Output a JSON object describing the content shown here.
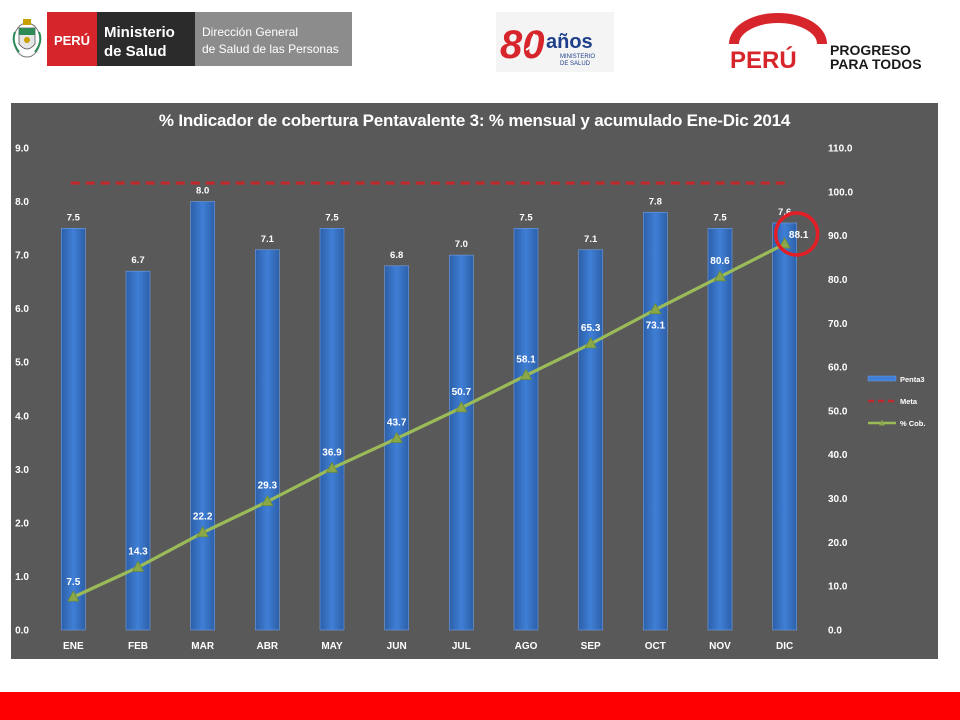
{
  "header": {
    "minsa_country": "PERÚ",
    "minsa_line1": "Ministerio",
    "minsa_line2": "de Salud",
    "dg_line1": "Dirección General",
    "dg_line2": "de Salud de las Personas",
    "anniv_number": "80",
    "anniv_word": "años",
    "anniv_sub1": "MINISTERIO",
    "anniv_sub2": "DE SALUD",
    "peru_brand": "PERÚ",
    "peru_slogan1": "PROGRESO",
    "peru_slogan2": "PARA TODOS"
  },
  "colors": {
    "chart_bg": "#595959",
    "bar": "#3f7fd6",
    "meta": "#c0282c",
    "cob_line": "#9bbb59",
    "footer": "#ff0000",
    "brand_red": "#d7262b"
  },
  "chart_data": {
    "type": "bar",
    "title": "% Indicador de cobertura Pentavalente 3: % mensual y acumulado Ene-Dic  2014",
    "categories": [
      "ENE",
      "FEB",
      "MAR",
      "ABR",
      "MAY",
      "JUN",
      "JUL",
      "AGO",
      "SEP",
      "OCT",
      "NOV",
      "DIC"
    ],
    "series": [
      {
        "name": "Penta3",
        "type": "bar",
        "axis": "left",
        "values": [
          7.5,
          6.7,
          8.0,
          7.1,
          7.5,
          6.8,
          7.0,
          7.5,
          7.1,
          7.8,
          7.5,
          7.6
        ]
      },
      {
        "name": "Meta",
        "type": "line",
        "style": "dashed",
        "axis": "right",
        "values": [
          102,
          102,
          102,
          102,
          102,
          102,
          102,
          102,
          102,
          102,
          102,
          102
        ]
      },
      {
        "name": "% Cob.",
        "type": "line",
        "marker": "triangle",
        "axis": "right",
        "values": [
          7.5,
          14.3,
          22.2,
          29.3,
          36.9,
          43.7,
          50.7,
          58.1,
          65.3,
          73.1,
          80.6,
          88.1
        ]
      }
    ],
    "ylim_left": [
      0,
      9
    ],
    "ylim_right": [
      0,
      110
    ],
    "yticks_left": [
      "0.0",
      "1.0",
      "2.0",
      "3.0",
      "4.0",
      "5.0",
      "6.0",
      "7.0",
      "8.0",
      "9.0"
    ],
    "yticks_right": [
      "0.0",
      "10.0",
      "20.0",
      "30.0",
      "40.0",
      "50.0",
      "60.0",
      "70.0",
      "80.0",
      "90.0",
      "100.0",
      "110.0"
    ],
    "legend_position": "right",
    "highlight": "DIC % Cob. value circled in red",
    "grid": false
  }
}
